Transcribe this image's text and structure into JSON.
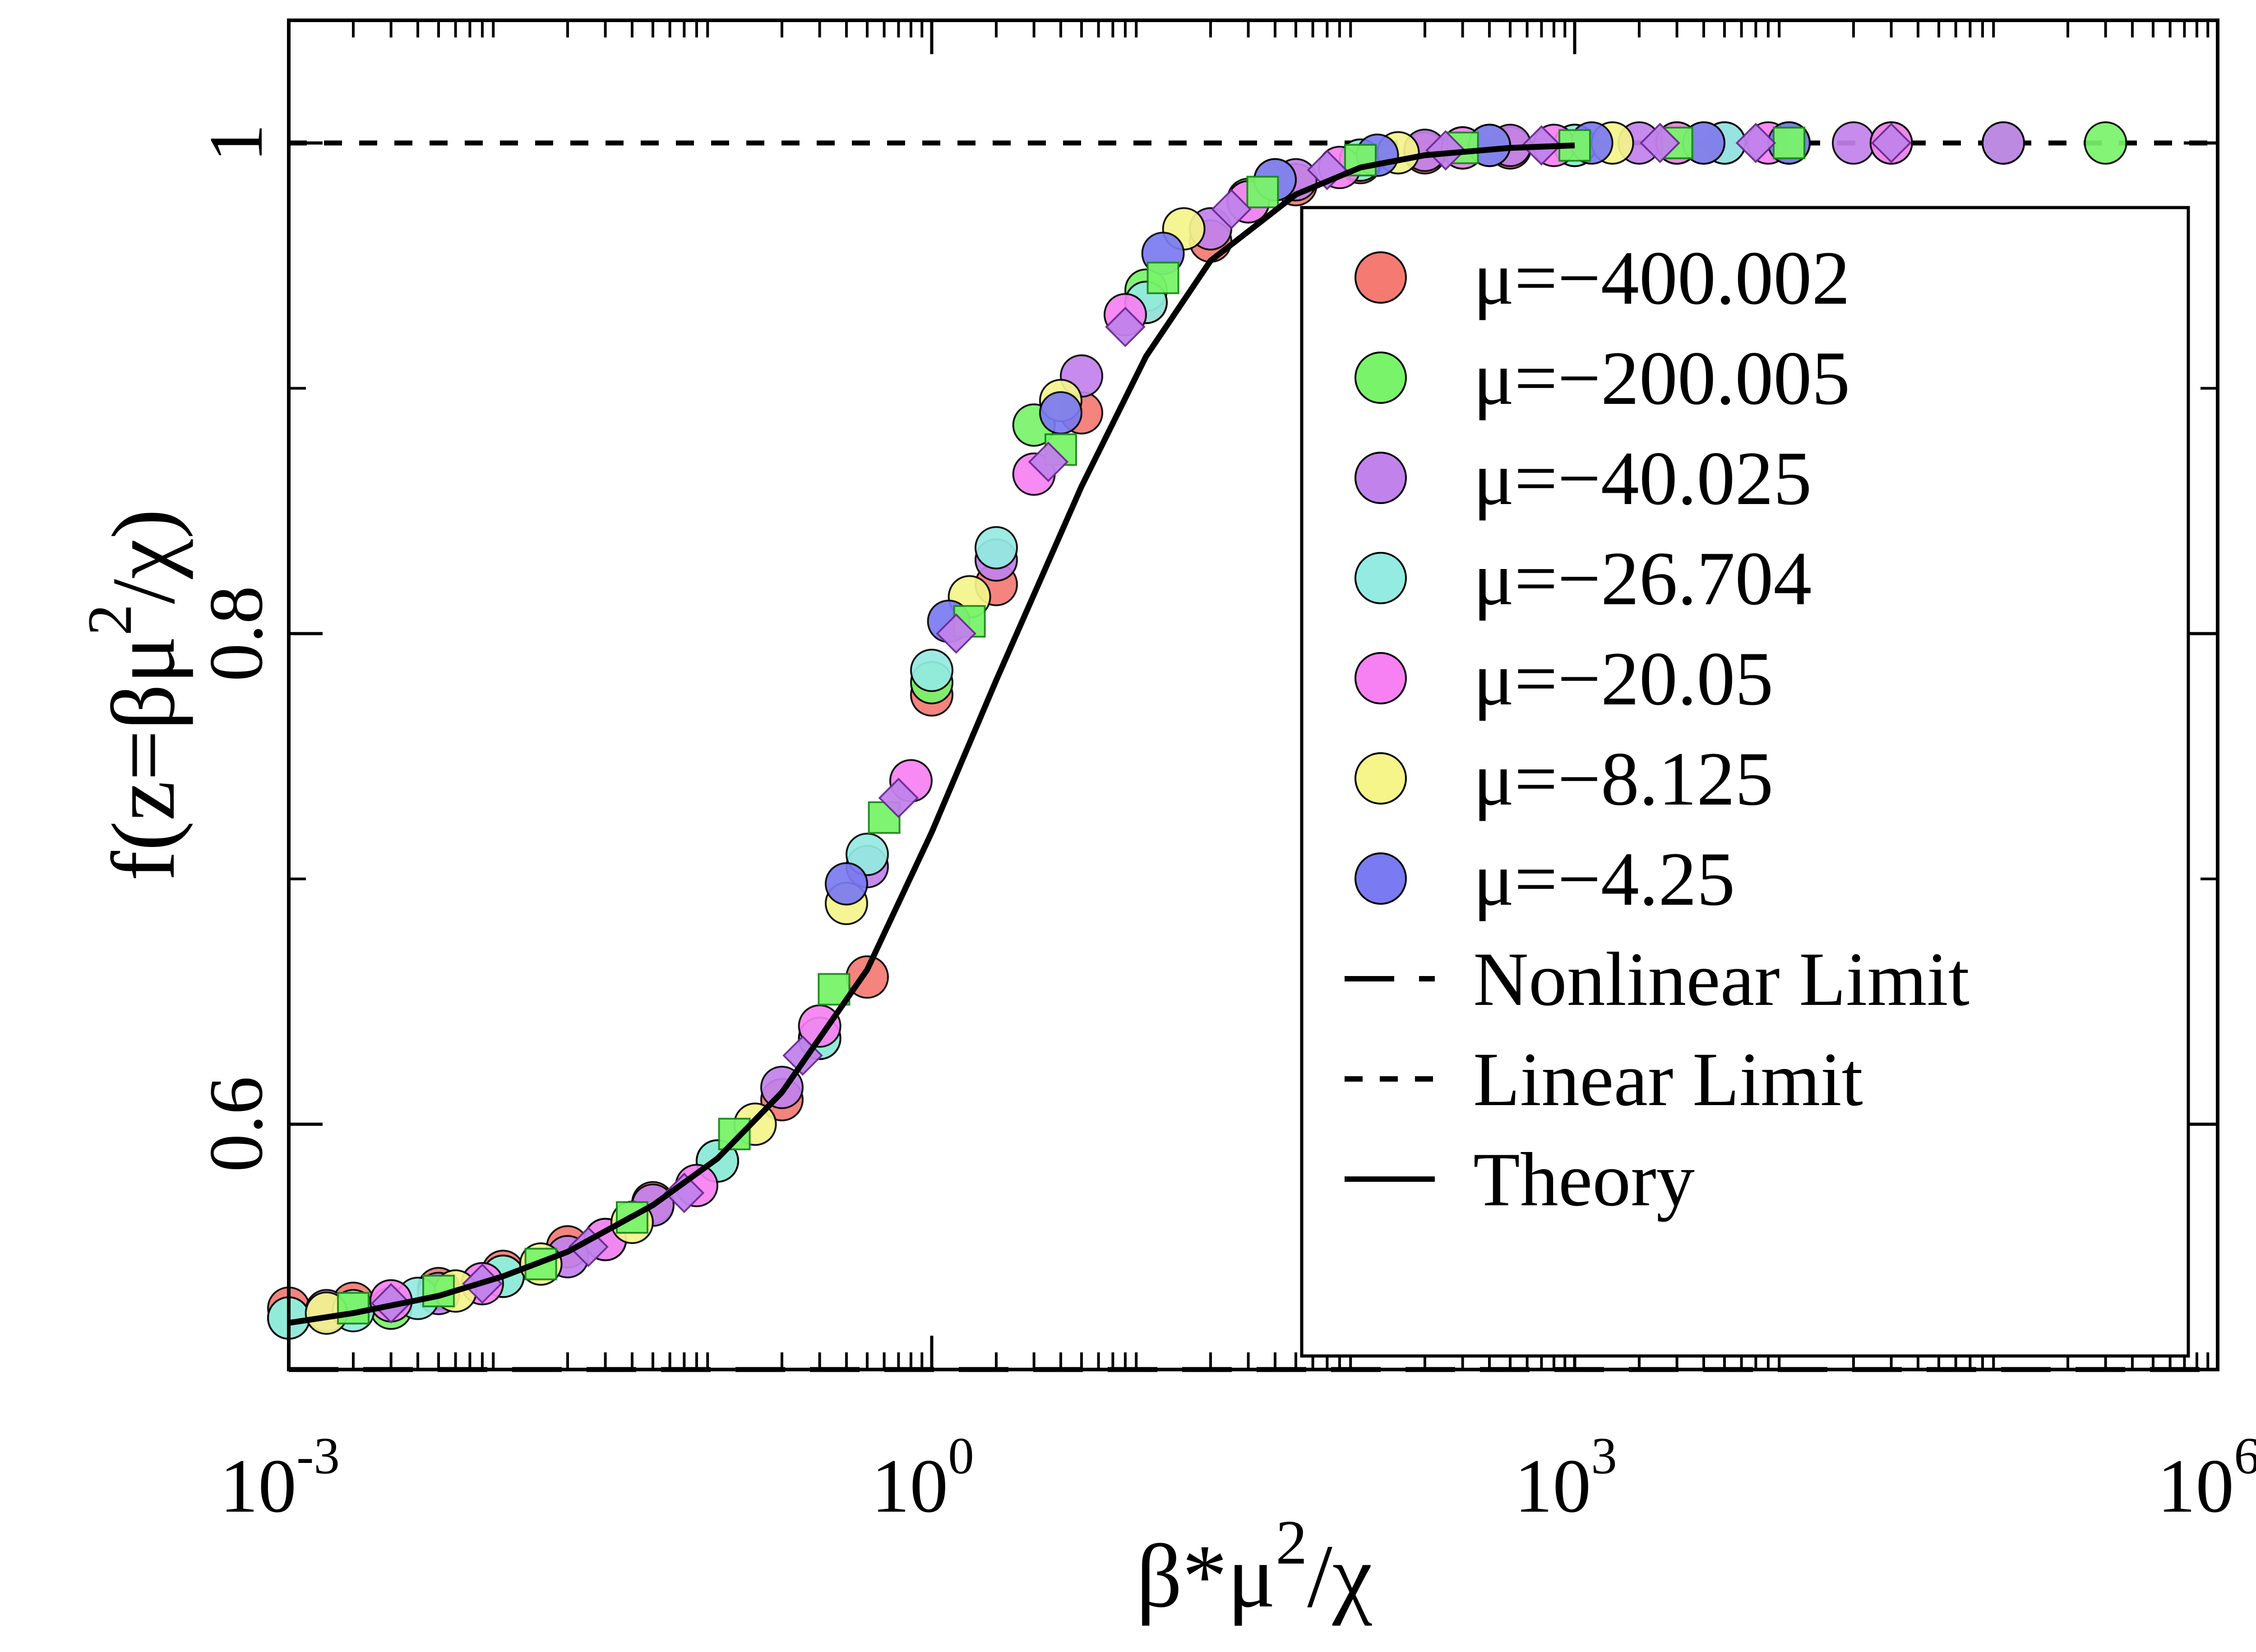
{
  "chart_data": {
    "type": "scatter",
    "x_scale": "log",
    "xlim": [
      0.001,
      1000000
    ],
    "ylim": [
      0.5,
      1.05
    ],
    "xlabel": {
      "base": "β*μ",
      "sup": "2",
      "tail": "/χ"
    },
    "ylabel": {
      "base": "f(z=βμ",
      "sup": "2",
      "tail": "/χ)"
    },
    "x_ticks": [
      {
        "value": 0.001,
        "base": "10",
        "exp": "-3"
      },
      {
        "value": 1,
        "base": "10",
        "exp": "0"
      },
      {
        "value": 1000,
        "base": "10",
        "exp": "3"
      },
      {
        "value": 1000000,
        "base": "10",
        "exp": "6"
      }
    ],
    "y_ticks": [
      {
        "value": 0.6,
        "label": "0.6"
      },
      {
        "value": 0.8,
        "label": "0.8"
      },
      {
        "value": 1,
        "label": "1"
      }
    ],
    "y_minor_ticks": [
      0.7,
      0.9
    ],
    "legend_position": "right",
    "series": [
      {
        "name": "μ=−400.002",
        "color": "#f47a72",
        "marker": "circle",
        "x": [
          0.001,
          0.002,
          0.005,
          0.01,
          0.02,
          0.05,
          0.1,
          0.2,
          0.5,
          1,
          2,
          5,
          10,
          20,
          50,
          100,
          200,
          500,
          1000,
          3000,
          10000
        ],
        "y": [
          0.525,
          0.527,
          0.533,
          0.54,
          0.55,
          0.568,
          0.585,
          0.61,
          0.66,
          0.775,
          0.82,
          0.89,
          0.935,
          0.96,
          0.983,
          0.992,
          0.996,
          0.998,
          0.999,
          1.0,
          1.0
        ]
      },
      {
        "name": "μ=−200.005",
        "color": "#79f46a",
        "marker": "circle",
        "x": [
          0.001,
          0.003,
          0.01,
          0.03,
          0.1,
          0.3,
          1,
          3,
          10,
          30,
          100,
          300,
          1000,
          3000,
          10000,
          30000,
          100000,
          300000
        ],
        "y": [
          0.521,
          0.525,
          0.538,
          0.553,
          0.585,
          0.635,
          0.78,
          0.885,
          0.94,
          0.977,
          0.993,
          0.998,
          0.999,
          1.0,
          1.0,
          1.0,
          1.0,
          1.0
        ]
      },
      {
        "name": "μ=−40.025",
        "color": "#c282ec",
        "marker": "circle",
        "x": [
          0.0015,
          0.005,
          0.02,
          0.05,
          0.2,
          0.5,
          2,
          5,
          20,
          50,
          200,
          500,
          2000,
          5000,
          20000,
          100000
        ],
        "y": [
          0.524,
          0.531,
          0.546,
          0.567,
          0.615,
          0.705,
          0.83,
          0.905,
          0.965,
          0.985,
          0.997,
          0.999,
          1.0,
          1.0,
          1.0,
          1.0
        ]
      },
      {
        "name": "μ=−26.704",
        "color": "#94ebe2",
        "marker": "circle",
        "x": [
          0.001,
          0.002,
          0.004,
          0.01,
          0.03,
          0.1,
          0.3,
          0.5,
          1,
          2,
          10,
          30,
          100,
          300,
          1000,
          5000
        ],
        "y": [
          0.521,
          0.524,
          0.529,
          0.538,
          0.553,
          0.585,
          0.635,
          0.71,
          0.785,
          0.835,
          0.935,
          0.976,
          0.993,
          0.998,
          0.999,
          1.0
        ]
      },
      {
        "name": "μ=−20.05",
        "color": "#f781f2",
        "marker": "circle",
        "x": [
          0.003,
          0.008,
          0.03,
          0.08,
          0.3,
          0.8,
          3,
          8,
          30,
          80,
          300,
          800,
          3000,
          8000,
          30000
        ],
        "y": [
          0.528,
          0.535,
          0.553,
          0.575,
          0.64,
          0.74,
          0.865,
          0.93,
          0.976,
          0.99,
          0.998,
          0.999,
          1.0,
          1.0,
          1.0
        ]
      },
      {
        "name": "μ=−8.125",
        "color": "#f5f58a",
        "marker": "circle",
        "x": [
          0.0015,
          0.006,
          0.015,
          0.04,
          0.15,
          0.4,
          1.5,
          4,
          15,
          40,
          150,
          400,
          1500,
          4000
        ],
        "y": [
          0.523,
          0.532,
          0.543,
          0.56,
          0.6,
          0.69,
          0.815,
          0.895,
          0.965,
          0.985,
          0.996,
          0.999,
          1.0,
          1.0
        ]
      },
      {
        "name": "μ=−4.25",
        "color": "#7a7af2",
        "marker": "circle",
        "x": [
          0.4,
          1.2,
          4,
          12,
          40,
          120,
          400,
          1200,
          4000,
          10000
        ],
        "y": [
          0.698,
          0.805,
          0.89,
          0.955,
          0.985,
          0.995,
          0.999,
          1.0,
          1.0,
          1.0
        ]
      }
    ],
    "extra_markers": [
      {
        "color": "#79f46a",
        "marker": "square",
        "x": [
          0.002,
          0.005,
          0.015,
          0.04,
          0.12,
          0.35,
          0.6,
          1.5,
          4,
          12,
          35,
          100,
          300,
          1000,
          3000,
          10000
        ],
        "y": [
          0.525,
          0.532,
          0.543,
          0.562,
          0.596,
          0.655,
          0.725,
          0.805,
          0.875,
          0.945,
          0.98,
          0.993,
          0.998,
          0.999,
          1.0,
          1.0
        ]
      },
      {
        "color": "#c282ec",
        "marker": "diamond",
        "x": [
          0.003,
          0.008,
          0.025,
          0.07,
          0.25,
          0.7,
          1.3,
          3.5,
          8,
          25,
          70,
          250,
          700,
          2500,
          7000,
          30000
        ],
        "y": [
          0.527,
          0.535,
          0.55,
          0.572,
          0.628,
          0.733,
          0.8,
          0.87,
          0.925,
          0.973,
          0.989,
          0.997,
          0.999,
          1.0,
          1.0,
          1.0
        ]
      }
    ],
    "theory": {
      "name": "Theory",
      "x": [
        0.001,
        0.002,
        0.005,
        0.01,
        0.02,
        0.05,
        0.1,
        0.2,
        0.5,
        1,
        2,
        5,
        10,
        20,
        50,
        100,
        200,
        500,
        1000
      ],
      "y": [
        0.519,
        0.523,
        0.53,
        0.538,
        0.548,
        0.567,
        0.586,
        0.613,
        0.663,
        0.719,
        0.781,
        0.86,
        0.913,
        0.952,
        0.979,
        0.99,
        0.995,
        0.998,
        0.999
      ]
    },
    "limits": [
      {
        "name": "Nonlinear Limit",
        "y": 0.5,
        "style": "long-dash"
      },
      {
        "name": "Linear Limit",
        "y": 1,
        "style": "short-dash"
      }
    ]
  }
}
